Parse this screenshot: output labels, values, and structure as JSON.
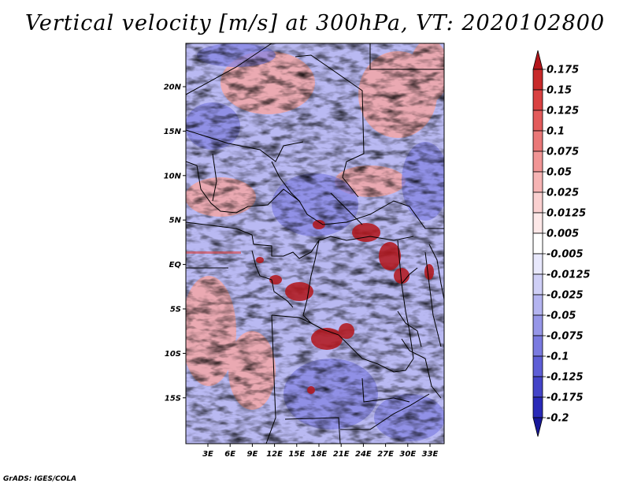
{
  "title": "Vertical velocity [m/s] at 300hPa, VT: 2020102800",
  "credit": "GrADS: IGES/COLA",
  "map": {
    "lat_labels": [
      "20N",
      "15N",
      "10N",
      "5N",
      "EQ",
      "5S",
      "10S",
      "15S"
    ],
    "lat_values": [
      20,
      15,
      10,
      5,
      0,
      -5,
      -10,
      -15
    ],
    "lon_labels": [
      "3E",
      "6E",
      "9E",
      "12E",
      "15E",
      "18E",
      "21E",
      "24E",
      "27E",
      "30E",
      "33E"
    ],
    "lon_values": [
      3,
      6,
      9,
      12,
      15,
      18,
      21,
      24,
      27,
      30,
      33
    ]
  },
  "colorbar": {
    "labels": [
      "0.175",
      "0.15",
      "0.125",
      "0.1",
      "0.075",
      "0.05",
      "0.025",
      "0.0125",
      "0.005",
      "-0.005",
      "-0.0125",
      "-0.025",
      "-0.05",
      "-0.075",
      "-0.1",
      "-0.125",
      "-0.175",
      "-0.2"
    ],
    "colors": [
      "#b3151a",
      "#c82a2a",
      "#d94141",
      "#e35b5b",
      "#ea7878",
      "#f19595",
      "#f6b4b4",
      "#fad0d0",
      "#fde8e8",
      "#ffffff",
      "#e8e8fc",
      "#cfcff6",
      "#b4b4f0",
      "#9696e8",
      "#7a7ae0",
      "#5e5ed6",
      "#4444c8",
      "#2a2ab8",
      "#18189a"
    ]
  }
}
